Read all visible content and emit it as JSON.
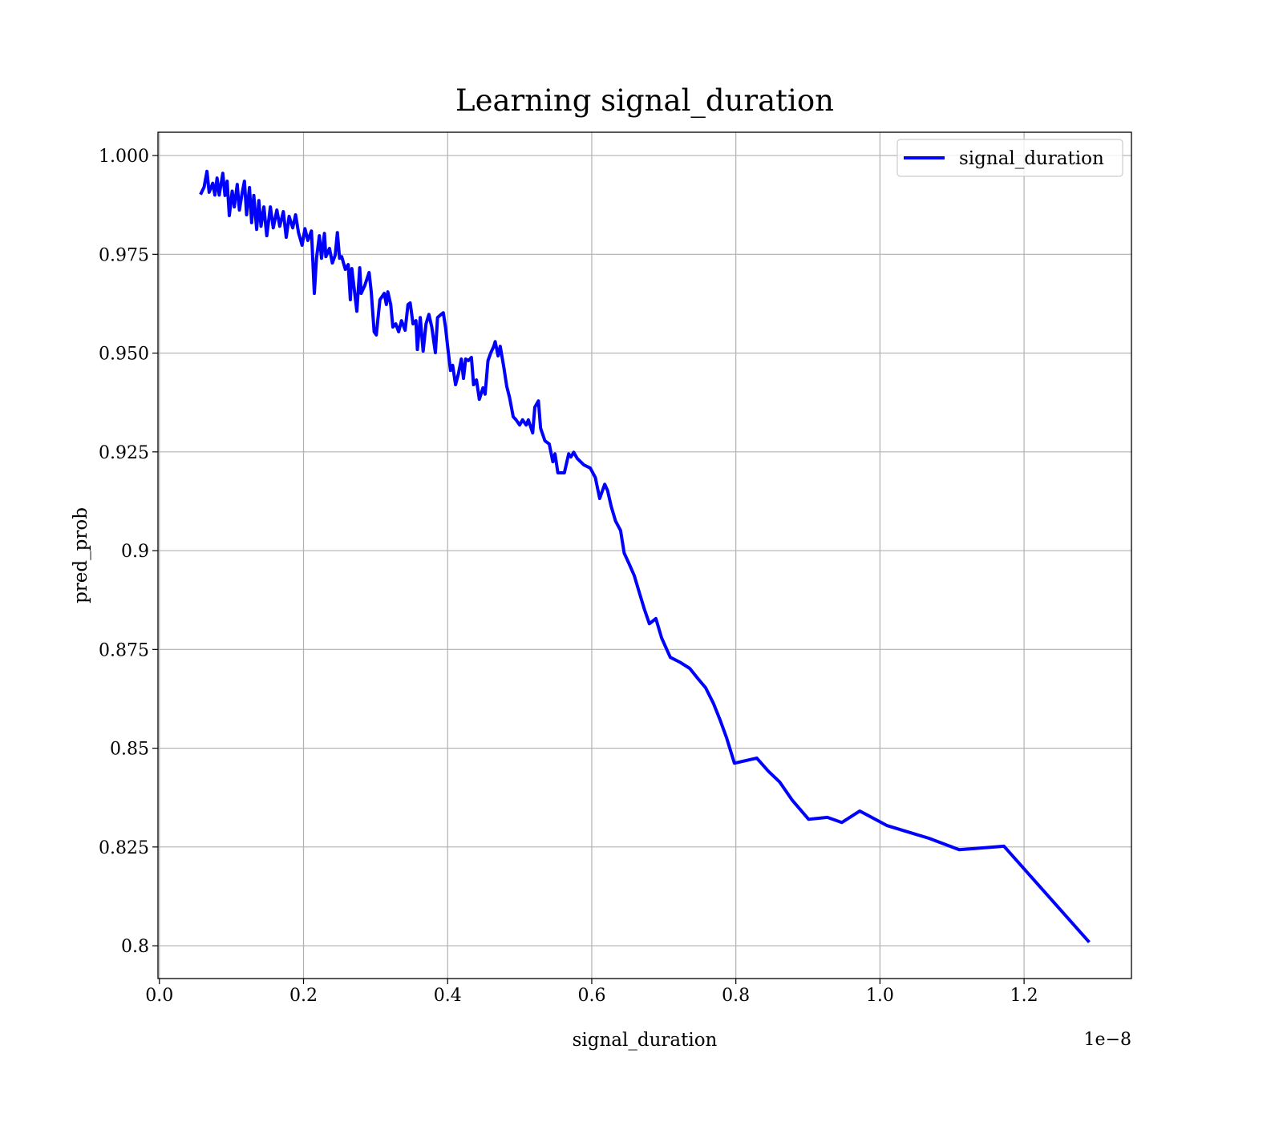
{
  "chart_data": {
    "type": "line",
    "title": "Learning signal_duration",
    "xlabel": "signal_duration",
    "ylabel": "pred_prob",
    "x_offset_label": "1e−8",
    "legend": "upper right",
    "grid": true,
    "xlim": [
      -0.002,
      1.349
    ],
    "ylim": [
      0.7917,
      1.0059
    ],
    "xticks": [
      {
        "value": 0,
        "label": "0.0"
      },
      0.2,
      0.4,
      0.6,
      0.8,
      {
        "value": 1,
        "label": "1.0"
      },
      1.2
    ],
    "yticks": [
      0.8,
      0.825,
      0.85,
      0.875,
      0.9,
      0.925,
      {
        "value": 0.95,
        "label": "0.950"
      },
      0.975,
      {
        "value": 1,
        "label": "1.000"
      }
    ],
    "x": [
      0.058,
      0.062,
      0.066,
      0.069,
      0.074,
      0.077,
      0.08,
      0.083,
      0.088,
      0.091,
      0.094,
      0.097,
      0.101,
      0.104,
      0.108,
      0.111,
      0.115,
      0.118,
      0.121,
      0.125,
      0.128,
      0.131,
      0.135,
      0.138,
      0.141,
      0.145,
      0.149,
      0.154,
      0.158,
      0.163,
      0.167,
      0.172,
      0.176,
      0.18,
      0.185,
      0.189,
      0.193,
      0.198,
      0.202,
      0.206,
      0.211,
      0.215,
      0.218,
      0.222,
      0.225,
      0.229,
      0.231,
      0.236,
      0.24,
      0.244,
      0.247,
      0.25,
      0.253,
      0.258,
      0.262,
      0.265,
      0.267,
      0.274,
      0.278,
      0.28,
      0.285,
      0.291,
      0.294,
      0.298,
      0.301,
      0.306,
      0.312,
      0.315,
      0.317,
      0.321,
      0.324,
      0.328,
      0.332,
      0.336,
      0.341,
      0.345,
      0.348,
      0.352,
      0.356,
      0.358,
      0.362,
      0.366,
      0.37,
      0.374,
      0.378,
      0.383,
      0.386,
      0.391,
      0.394,
      0.397,
      0.401,
      0.404,
      0.407,
      0.411,
      0.415,
      0.419,
      0.422,
      0.425,
      0.429,
      0.433,
      0.436,
      0.44,
      0.444,
      0.449,
      0.452,
      0.456,
      0.46,
      0.464,
      0.466,
      0.47,
      0.473,
      0.478,
      0.482,
      0.486,
      0.491,
      0.495,
      0.5,
      0.504,
      0.509,
      0.512,
      0.518,
      0.521,
      0.526,
      0.529,
      0.535,
      0.541,
      0.546,
      0.549,
      0.553,
      0.562,
      0.568,
      0.571,
      0.575,
      0.58,
      0.589,
      0.598,
      0.605,
      0.611,
      0.618,
      0.622,
      0.627,
      0.633,
      0.64,
      0.645,
      0.652,
      0.659,
      0.667,
      0.673,
      0.68,
      0.689,
      0.697,
      0.709,
      0.722,
      0.736,
      0.747,
      0.758,
      0.769,
      0.778,
      0.787,
      0.798,
      0.829,
      0.845,
      0.861,
      0.878,
      0.901,
      0.927,
      0.947,
      0.972,
      1.01,
      1.068,
      1.11,
      1.172,
      1.289
    ],
    "series": [
      {
        "name": "signal_duration",
        "color": "#0000ff",
        "values": [
          0.9905,
          0.992,
          0.996,
          0.9907,
          0.993,
          0.99,
          0.9943,
          0.99,
          0.9955,
          0.9899,
          0.9935,
          0.9848,
          0.991,
          0.987,
          0.9927,
          0.9862,
          0.9907,
          0.9935,
          0.985,
          0.9919,
          0.983,
          0.9899,
          0.9813,
          0.9886,
          0.9821,
          0.987,
          0.9797,
          0.987,
          0.9817,
          0.9862,
          0.9821,
          0.9858,
          0.9793,
          0.9846,
          0.9817,
          0.985,
          0.9805,
          0.9773,
          0.9815,
          0.9785,
          0.9809,
          0.9651,
          0.974,
          0.9797,
          0.974,
          0.9803,
          0.9744,
          0.9765,
          0.9728,
          0.9748,
          0.9805,
          0.974,
          0.9744,
          0.9712,
          0.9724,
          0.9635,
          0.9714,
          0.9606,
          0.9716,
          0.9651,
          0.9671,
          0.9704,
          0.9655,
          0.9554,
          0.9546,
          0.9635,
          0.9651,
          0.9623,
          0.9655,
          0.9623,
          0.9566,
          0.9574,
          0.9554,
          0.9582,
          0.9558,
          0.9623,
          0.9627,
          0.9574,
          0.9582,
          0.9509,
          0.959,
          0.9505,
          0.9574,
          0.9598,
          0.9566,
          0.9501,
          0.959,
          0.9598,
          0.9602,
          0.9566,
          0.9501,
          0.9456,
          0.9469,
          0.942,
          0.9448,
          0.9485,
          0.9436,
          0.9485,
          0.9481,
          0.9489,
          0.942,
          0.9432,
          0.9383,
          0.9412,
          0.9396,
          0.9481,
          0.9501,
          0.9517,
          0.9529,
          0.9493,
          0.9517,
          0.9464,
          0.9416,
          0.9387,
          0.9339,
          0.9331,
          0.9318,
          0.9331,
          0.9318,
          0.9331,
          0.9298,
          0.9363,
          0.9379,
          0.931,
          0.9278,
          0.927,
          0.9225,
          0.9245,
          0.9197,
          0.9197,
          0.9245,
          0.9237,
          0.9249,
          0.9233,
          0.9217,
          0.9209,
          0.9185,
          0.9132,
          0.9168,
          0.9152,
          0.9112,
          0.9075,
          0.9051,
          0.8994,
          0.8966,
          0.8937,
          0.8888,
          0.8852,
          0.8815,
          0.8828,
          0.8779,
          0.873,
          0.8718,
          0.8702,
          0.8677,
          0.8653,
          0.8613,
          0.8572,
          0.8527,
          0.8462,
          0.8475,
          0.8442,
          0.8414,
          0.8369,
          0.832,
          0.8325,
          0.8312,
          0.8341,
          0.8304,
          0.8272,
          0.8243,
          0.8252,
          0.8012
        ]
      }
    ]
  }
}
